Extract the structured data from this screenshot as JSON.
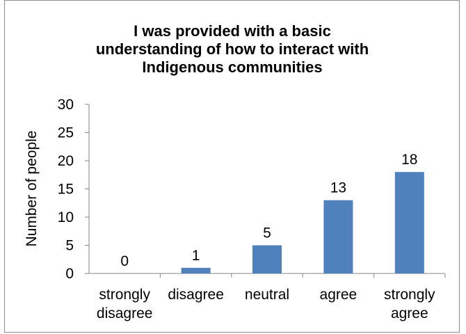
{
  "chart_data": {
    "type": "bar",
    "title": [
      "I was provided with a basic",
      "understanding of how to interact with",
      "Indigenous communities"
    ],
    "xlabel": "",
    "ylabel": "Number of people",
    "categories": [
      [
        "strongly",
        "disagree"
      ],
      [
        "disagree"
      ],
      [
        "neutral"
      ],
      [
        "agree"
      ],
      [
        "strongly",
        "agree"
      ]
    ],
    "values": [
      0,
      1,
      5,
      13,
      18
    ],
    "data_labels": [
      "0",
      "1",
      "5",
      "13",
      "18"
    ],
    "ylim": [
      0,
      30
    ],
    "yticks": [
      0,
      5,
      10,
      15,
      20,
      25,
      30
    ],
    "bar_color": "#4f81bd",
    "grid": false,
    "legend": "none"
  }
}
